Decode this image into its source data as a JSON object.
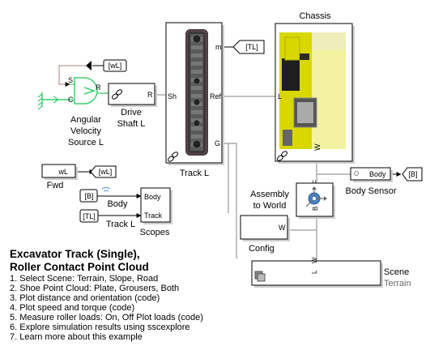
{
  "blocks": {
    "chassis": {
      "label": "Chassis",
      "port_l": "L",
      "port_w": "W"
    },
    "track": {
      "label": "Track L",
      "port_m": "m",
      "port_ref": "Ref",
      "port_sh": "Sh",
      "port_g": "G"
    },
    "goto_tl": {
      "label": "[TL]"
    },
    "from_wl_top": {
      "label": "[wL]"
    },
    "angular_source": {
      "label_lines": [
        "Angular",
        "Velocity",
        "Source L"
      ],
      "port_s": "S",
      "port_r": "R",
      "port_c": "C"
    },
    "drive_shaft": {
      "label_lines": [
        "Drive",
        "Shaft L"
      ],
      "port_r": "R"
    },
    "fwd": {
      "label": "Fwd",
      "value": "wL"
    },
    "goto_wl": {
      "label": "[wL]"
    },
    "from_b": {
      "label": "[B]"
    },
    "from_tl": {
      "label": "[TL]"
    },
    "body_tag": {
      "label": "Body"
    },
    "track_tag": {
      "label": "Track L"
    },
    "scopes": {
      "label": "Scopes",
      "port_body": "Body",
      "port_track": "Track"
    },
    "body_sensor": {
      "label": "Body Sensor",
      "port": "Body"
    },
    "goto_b": {
      "label": "[B]"
    },
    "assembly": {
      "label_lines": [
        "Assembly",
        "to World"
      ],
      "port_f": "F",
      "port_b": "B"
    },
    "config": {
      "label": "Config",
      "port": "W"
    },
    "scene": {
      "label": "Scene",
      "sublabel": "Terrain",
      "port_l": "L",
      "port_w": "W"
    }
  },
  "description": {
    "title_lines": [
      "Excavator Track (Single),",
      "Roller Contact Point Cloud"
    ],
    "items": [
      "1. Select Scene: Terrain, Slope, Road",
      "2. Shoe Point Cloud: Plate, Grousers, Both",
      "3. Plot distance and orientation (code)",
      "4. Plot speed and torque (code)",
      "5. Measure roller loads: On, Off  Plot loads (code)",
      "6. Explore simulation results using sscexplore",
      "7. Learn more about this example"
    ]
  },
  "colors": {
    "physical_wire": "#9a9a9a",
    "signal_wire": "#000000",
    "angular_source": "#3bd16f",
    "chassis_yellow": "#d8d800",
    "track_dark": "#3a3a3a"
  }
}
